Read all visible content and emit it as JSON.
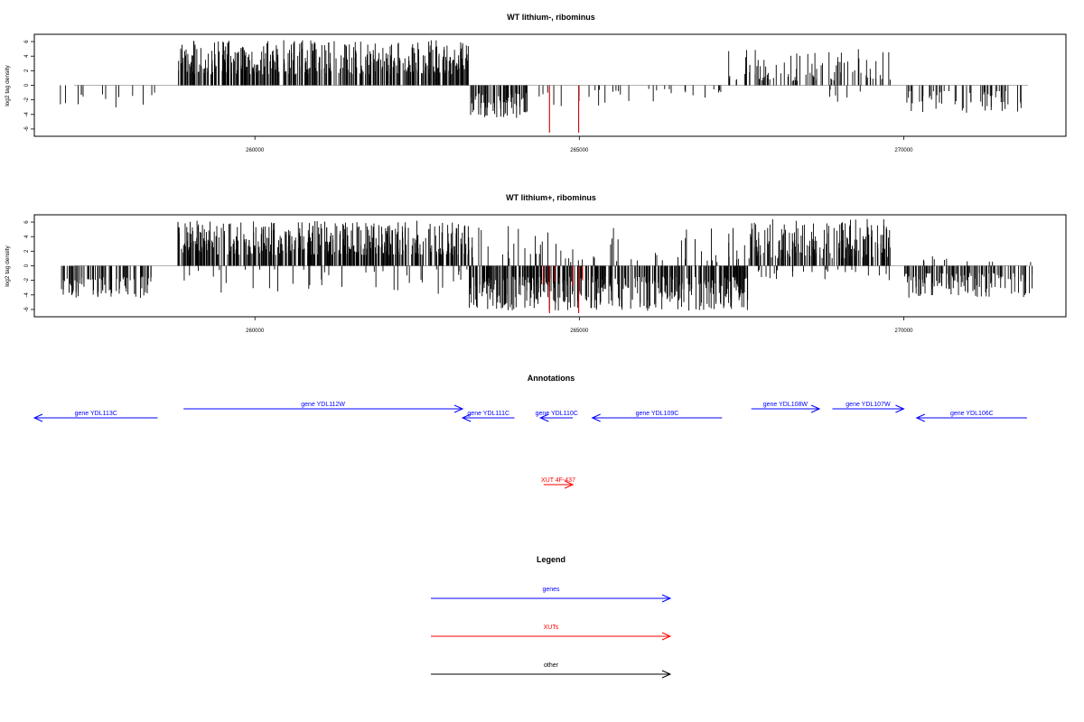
{
  "chart_data": [
    {
      "type": "bar",
      "title": "WT lithium-, ribominus",
      "ylabel": "log2 tag density",
      "xlim": [
        256600,
        272500
      ],
      "ylim": [
        -7,
        7
      ],
      "x_ticks": [
        260000,
        265000,
        270000
      ],
      "x_tick_labels": [
        "260000",
        "265000",
        "270000"
      ],
      "y_ticks": [
        -6,
        -4,
        -2,
        0,
        2,
        4,
        6
      ],
      "y_tick_labels": [
        "-6",
        "-4",
        "-2",
        "0",
        "2",
        "4",
        "6"
      ],
      "baseline": 0,
      "bar_color": "#000000",
      "highlight_color": "#cc0000",
      "density_segments": [
        {
          "start": 257000,
          "end": 258500,
          "mode": "neg",
          "count": 14,
          "min": 1.0,
          "max": 3.3
        },
        {
          "start": 258800,
          "end": 263300,
          "mode": "pos",
          "count": 430,
          "min": 1.5,
          "max": 6.2
        },
        {
          "start": 263300,
          "end": 264200,
          "mode": "neg",
          "count": 75,
          "min": 1.0,
          "max": 4.5
        },
        {
          "start": 264300,
          "end": 266500,
          "mode": "neg",
          "count": 22,
          "min": 0.5,
          "max": 3.0
        },
        {
          "start": 266500,
          "end": 267200,
          "mode": "neg",
          "count": 8,
          "min": 0.5,
          "max": 2.5
        },
        {
          "start": 267300,
          "end": 269800,
          "mode": "pos",
          "count": 90,
          "min": 0.6,
          "max": 5.0
        },
        {
          "start": 268700,
          "end": 269500,
          "mode": "neg",
          "count": 6,
          "min": 0.5,
          "max": 2.3
        },
        {
          "start": 270000,
          "end": 271900,
          "mode": "neg",
          "count": 55,
          "min": 0.8,
          "max": 3.8
        }
      ],
      "highlights": [
        {
          "x": 264540,
          "value": -6.5
        },
        {
          "x": 264990,
          "value": -6.5
        }
      ]
    },
    {
      "type": "bar",
      "title": "WT lithium+, ribominus",
      "ylabel": "log2 tag density",
      "xlim": [
        256600,
        272500
      ],
      "ylim": [
        -7,
        7
      ],
      "x_ticks": [
        260000,
        265000,
        270000
      ],
      "x_tick_labels": [
        "260000",
        "265000",
        "270000"
      ],
      "y_ticks": [
        -6,
        -4,
        -2,
        0,
        2,
        4,
        6
      ],
      "y_tick_labels": [
        "-6",
        "-4",
        "-2",
        "0",
        "2",
        "4",
        "6"
      ],
      "baseline": 0,
      "bar_color": "#000000",
      "highlight_color": "#cc0000",
      "density_segments": [
        {
          "start": 257000,
          "end": 258400,
          "mode": "neg",
          "count": 90,
          "min": 1.5,
          "max": 4.4
        },
        {
          "start": 258800,
          "end": 263300,
          "mode": "pos",
          "count": 450,
          "min": 1.5,
          "max": 6.2
        },
        {
          "start": 258800,
          "end": 263300,
          "mode": "neg",
          "count": 40,
          "min": 0.5,
          "max": 4.2
        },
        {
          "start": 263300,
          "end": 267600,
          "mode": "neg",
          "count": 420,
          "min": 1.5,
          "max": 6.2
        },
        {
          "start": 263300,
          "end": 267600,
          "mode": "pos",
          "count": 60,
          "min": 0.5,
          "max": 5.5
        },
        {
          "start": 267600,
          "end": 269800,
          "mode": "pos",
          "count": 170,
          "min": 1.0,
          "max": 6.5
        },
        {
          "start": 267600,
          "end": 269800,
          "mode": "neg",
          "count": 25,
          "min": 0.5,
          "max": 2.0
        },
        {
          "start": 270000,
          "end": 272000,
          "mode": "neg",
          "count": 130,
          "min": 1.0,
          "max": 4.5
        },
        {
          "start": 270000,
          "end": 272000,
          "mode": "pos",
          "count": 10,
          "min": 0.5,
          "max": 1.8
        }
      ],
      "highlights": [
        {
          "x": 264540,
          "value": -6.5
        },
        {
          "x": 264990,
          "value": -6.5
        },
        {
          "x": 264450,
          "value": -2.6
        },
        {
          "x": 264620,
          "value": -2.2
        },
        {
          "x": 264900,
          "value": -2.8
        },
        {
          "x": 265050,
          "value": -2.0
        }
      ]
    }
  ],
  "annotations": {
    "title": "Annotations",
    "genes_color": "#0000ff",
    "xuts_color": "#ff0000",
    "other_color": "#000000",
    "items": [
      {
        "label": "gene YDL113C",
        "start": 256600,
        "end": 258500,
        "strand": "-",
        "row": 1,
        "type": "gene"
      },
      {
        "label": "gene YDL112W",
        "start": 258900,
        "end": 263200,
        "strand": "+",
        "row": 0,
        "type": "gene"
      },
      {
        "label": "gene YDL111C",
        "start": 263200,
        "end": 264000,
        "strand": "-",
        "row": 1,
        "type": "gene"
      },
      {
        "label": "gene YDL110C",
        "start": 264400,
        "end": 264900,
        "strand": "-",
        "row": 1,
        "type": "gene"
      },
      {
        "label": "gene YDL109C",
        "start": 265200,
        "end": 267200,
        "strand": "-",
        "row": 1,
        "type": "gene"
      },
      {
        "label": "gene YDL108W",
        "start": 267650,
        "end": 268700,
        "strand": "+",
        "row": 0,
        "type": "gene"
      },
      {
        "label": "gene YDL107W",
        "start": 268900,
        "end": 270000,
        "strand": "+",
        "row": 0,
        "type": "gene"
      },
      {
        "label": "gene YDL106C",
        "start": 270200,
        "end": 271900,
        "strand": "-",
        "row": 1,
        "type": "gene"
      },
      {
        "label": "XUT 4F-437",
        "start": 264450,
        "end": 264900,
        "strand": "+",
        "row": 2,
        "type": "xut"
      }
    ]
  },
  "legend": {
    "title": "Legend",
    "entries": [
      {
        "label": "genes",
        "color": "#0000ff"
      },
      {
        "label": "XUTs",
        "color": "#ff0000"
      },
      {
        "label": "other",
        "color": "#000000"
      }
    ]
  }
}
